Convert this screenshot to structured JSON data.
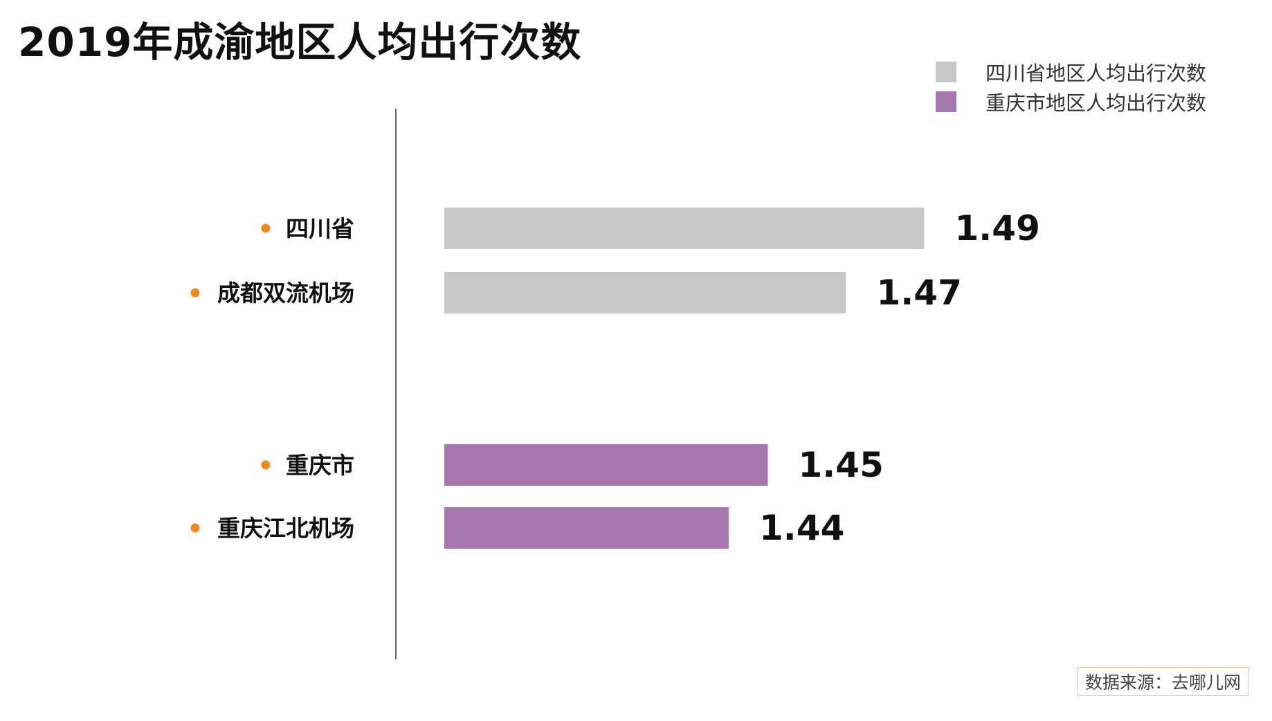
{
  "colors": {
    "sichuan": "#c8c8c8",
    "chongqing": "#a778b0",
    "bullet": "#f08a1e",
    "axis": "#333333"
  },
  "legend": [
    {
      "label": "四川省地区人均出行次数",
      "color": "#c8c8c8"
    },
    {
      "label": "重庆市地区人均出行次数",
      "color": "#a778b0"
    }
  ],
  "source": "数据来源：去哪儿网",
  "chart_data": {
    "type": "bar",
    "orientation": "horizontal",
    "title": "2019年成渝地区人均出行次数",
    "categories": [
      "四川省",
      "成都双流机场",
      "重庆市",
      "重庆江北机场"
    ],
    "values": [
      1.49,
      1.47,
      1.45,
      1.44
    ],
    "groups": [
      "四川省地区人均出行次数",
      "四川省地区人均出行次数",
      "重庆市地区人均出行次数",
      "重庆市地区人均出行次数"
    ],
    "value_labels": [
      "1.49",
      "1.47",
      "1.45",
      "1.44"
    ],
    "legend_position": "top-right",
    "grid": false
  }
}
